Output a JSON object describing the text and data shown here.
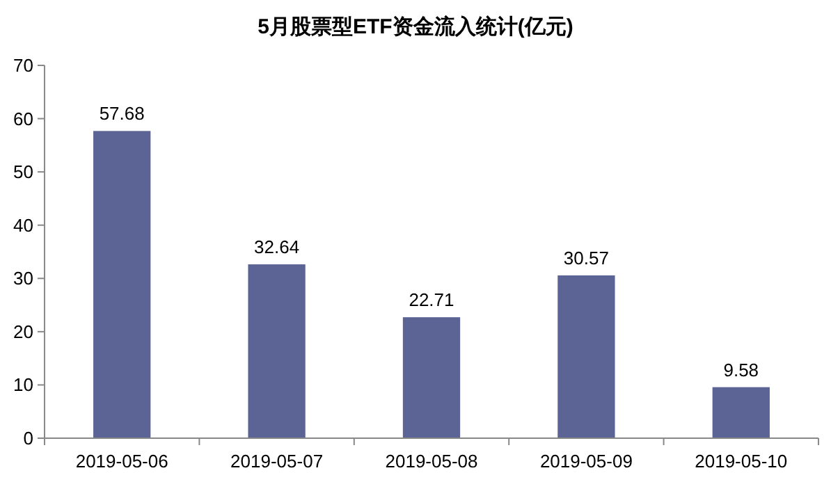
{
  "chart_data": {
    "type": "bar",
    "title": "5月股票型ETF资金流入统计(亿元)",
    "categories": [
      "2019-05-06",
      "2019-05-07",
      "2019-05-08",
      "2019-05-09",
      "2019-05-10"
    ],
    "values": [
      57.68,
      32.64,
      22.71,
      30.57,
      9.58
    ],
    "color": "#5b6494",
    "ylim": [
      0,
      70
    ],
    "yticks": [
      0,
      10,
      20,
      30,
      40,
      50,
      60,
      70
    ],
    "data_labels": true
  }
}
